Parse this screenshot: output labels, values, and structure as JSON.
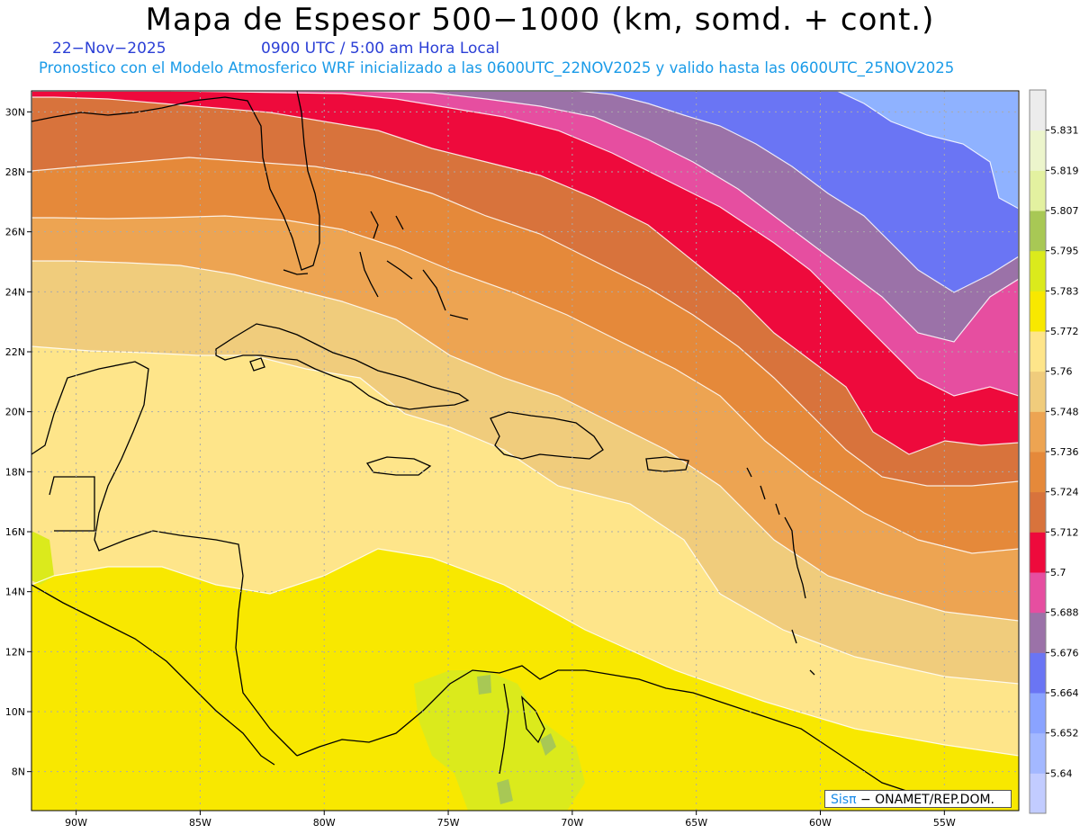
{
  "title": "Mapa de Espesor 500−1000 (km, somd. + cont.)",
  "date": "22−Nov−2025",
  "time": "0900 UTC / 5:00 am Hora Local",
  "description": "Pronostico con el Modelo Atmosferico WRF inicializado a las 0600UTC_22NOV2025 y valido hasta las  0600UTC_25NOV2025",
  "credit": {
    "brand": "Sisπ",
    "text": " − ONAMET/REP.DOM."
  },
  "map": {
    "lat_labels": [
      "30N",
      "28N",
      "26N",
      "24N",
      "22N",
      "20N",
      "18N",
      "16N",
      "14N",
      "12N",
      "10N",
      "8N"
    ],
    "lon_labels": [
      "90W",
      "85W",
      "80W",
      "75W",
      "70W",
      "65W",
      "60W",
      "55W"
    ],
    "lat_range": [
      6.7,
      30.7
    ],
    "lon_range": [
      -91.8,
      -52.0
    ],
    "gridlines": true
  },
  "colorbar": {
    "labels": [
      "5.64",
      "5.652",
      "5.664",
      "5.676",
      "5.688",
      "5.7",
      "5.712",
      "5.724",
      "5.736",
      "5.748",
      "5.76",
      "5.772",
      "5.783",
      "5.795",
      "5.807",
      "5.819",
      "5.831"
    ],
    "colors": [
      "#c2ccff",
      "#a3b8ff",
      "#8aa3ff",
      "#6a75f4",
      "#9b72a8",
      "#e64ea0",
      "#ee0a3c",
      "#d8733c",
      "#e5893a",
      "#eda452",
      "#f0cc7c",
      "#fee58a",
      "#f8e800",
      "#dbea1c",
      "#a8c855",
      "#e3f1a0",
      "#ecf5cc",
      "#ececec"
    ]
  },
  "band_colors": {
    "light_blue": "#8fb2ff",
    "blue": "#6a75f4",
    "purple": "#9b72a8",
    "pink": "#e64ea0",
    "red": "#ee0a3c",
    "dark_orange": "#d8733c",
    "orange": "#e5893a",
    "light_orange": "#eda452",
    "tan": "#f0cc7c",
    "pale_yellow": "#fee58a",
    "yellow": "#f8e800",
    "yellow_green": "#dbea1c",
    "green": "#a8c855"
  }
}
